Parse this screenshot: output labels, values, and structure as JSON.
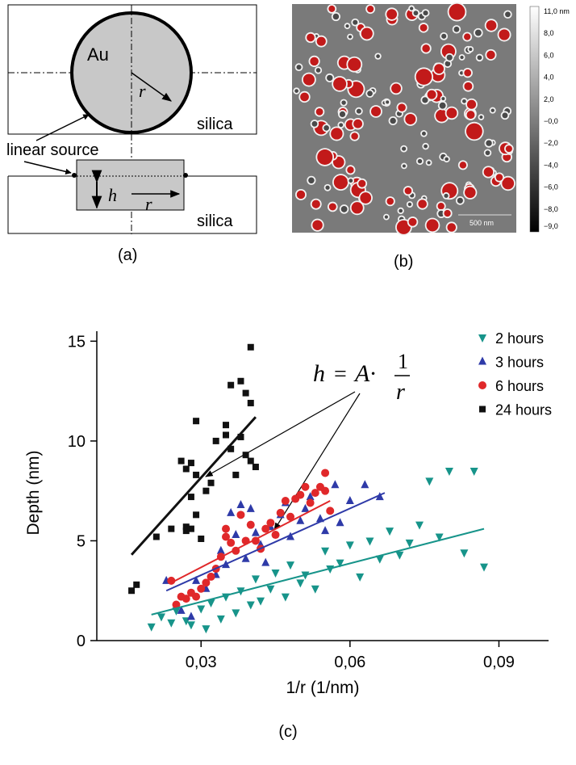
{
  "panel_a": {
    "circle_label": "Au",
    "radius_label_top": "r",
    "silica_top": "silica",
    "source_label": "linear source",
    "depth_label": "h",
    "radius_label_bottom": "r",
    "silica_bottom": "silica",
    "caption": "(a)"
  },
  "panel_b": {
    "colorbar_labels": [
      "11,0 nm",
      "8,0",
      "6,0",
      "4,0",
      "2,0",
      "−0,0",
      "−2,0",
      "−4,0",
      "−6,0",
      "−8,0",
      "−9,0"
    ],
    "scale_bar": "500 nm",
    "caption": "(b)"
  },
  "chart_data": {
    "type": "scatter",
    "caption": "(c)",
    "x_label": "1/r (1/nm)",
    "y_label": "Depth (nm)",
    "formula": {
      "lhs": "h",
      "eq": "=",
      "coef": "A·",
      "numerator": "1",
      "denominator": "r"
    },
    "xlim": [
      0.009,
      0.1
    ],
    "ylim": [
      0,
      15.5
    ],
    "xticks": [
      {
        "value": 0.03,
        "label": "0,03"
      },
      {
        "value": 0.06,
        "label": "0,06"
      },
      {
        "value": 0.09,
        "label": "0,09"
      }
    ],
    "yticks": [
      0,
      5,
      10,
      15
    ],
    "series": [
      {
        "name": "2 hours",
        "color": "#17948a",
        "marker": "triangle-down",
        "x": [
          0.02,
          0.022,
          0.024,
          0.025,
          0.027,
          0.028,
          0.03,
          0.031,
          0.032,
          0.034,
          0.035,
          0.037,
          0.038,
          0.04,
          0.041,
          0.042,
          0.044,
          0.045,
          0.047,
          0.048,
          0.05,
          0.051,
          0.053,
          0.055,
          0.056,
          0.058,
          0.06,
          0.062,
          0.064,
          0.066,
          0.068,
          0.07,
          0.072,
          0.074,
          0.076,
          0.078,
          0.08,
          0.083,
          0.085,
          0.087
        ],
        "values": [
          0.7,
          1.2,
          0.9,
          1.5,
          1.0,
          0.8,
          1.6,
          0.6,
          1.9,
          1.1,
          2.2,
          1.4,
          2.5,
          1.8,
          3.1,
          2.0,
          2.6,
          3.4,
          2.2,
          3.8,
          2.9,
          3.3,
          2.6,
          4.5,
          3.6,
          3.9,
          4.8,
          3.2,
          5.0,
          4.1,
          5.5,
          4.3,
          4.9,
          5.8,
          8.0,
          5.2,
          8.5,
          4.4,
          8.5,
          3.7
        ],
        "fit_x": [
          0.02,
          0.087
        ],
        "fit_y": [
          1.3,
          5.6
        ]
      },
      {
        "name": "3 hours",
        "color": "#2e3aa8",
        "marker": "triangle-up",
        "x": [
          0.023,
          0.026,
          0.028,
          0.029,
          0.031,
          0.033,
          0.034,
          0.035,
          0.036,
          0.037,
          0.038,
          0.039,
          0.04,
          0.041,
          0.042,
          0.043,
          0.044,
          0.046,
          0.047,
          0.048,
          0.05,
          0.051,
          0.052,
          0.054,
          0.055,
          0.057,
          0.058,
          0.06,
          0.063,
          0.066
        ],
        "values": [
          3.0,
          1.5,
          1.2,
          3.0,
          2.6,
          3.3,
          4.5,
          3.8,
          6.4,
          5.3,
          6.8,
          4.1,
          6.6,
          5.4,
          4.8,
          3.9,
          5.7,
          6.3,
          6.9,
          5.2,
          6.0,
          6.6,
          7.2,
          6.1,
          5.5,
          7.8,
          5.9,
          7.0,
          7.8,
          7.2
        ],
        "fit_x": [
          0.023,
          0.067
        ],
        "fit_y": [
          2.5,
          7.4
        ]
      },
      {
        "name": "6 hours",
        "color": "#e0282a",
        "marker": "circle",
        "x": [
          0.024,
          0.025,
          0.026,
          0.027,
          0.028,
          0.029,
          0.03,
          0.031,
          0.032,
          0.033,
          0.034,
          0.035,
          0.035,
          0.036,
          0.037,
          0.038,
          0.039,
          0.04,
          0.041,
          0.042,
          0.043,
          0.044,
          0.045,
          0.046,
          0.047,
          0.048,
          0.049,
          0.05,
          0.051,
          0.052,
          0.053,
          0.054,
          0.055,
          0.055,
          0.056
        ],
        "values": [
          3.0,
          1.8,
          2.2,
          2.1,
          2.4,
          2.2,
          2.6,
          2.9,
          3.2,
          3.6,
          4.2,
          5.2,
          5.6,
          4.9,
          4.5,
          6.3,
          5.0,
          5.8,
          5.0,
          4.6,
          5.6,
          5.9,
          5.3,
          6.4,
          7.0,
          6.2,
          7.1,
          7.3,
          7.7,
          6.9,
          7.4,
          7.7,
          8.4,
          7.5,
          6.5
        ],
        "fit_x": [
          0.024,
          0.056
        ],
        "fit_y": [
          2.9,
          7.0
        ]
      },
      {
        "name": "24 hours",
        "color": "#111111",
        "marker": "square",
        "x": [
          0.016,
          0.017,
          0.021,
          0.024,
          0.026,
          0.027,
          0.027,
          0.027,
          0.028,
          0.028,
          0.028,
          0.029,
          0.029,
          0.029,
          0.03,
          0.031,
          0.032,
          0.033,
          0.035,
          0.035,
          0.036,
          0.036,
          0.037,
          0.038,
          0.038,
          0.039,
          0.039,
          0.04,
          0.04,
          0.04,
          0.041
        ],
        "values": [
          2.5,
          2.8,
          5.2,
          5.6,
          9.0,
          8.6,
          5.5,
          5.7,
          5.6,
          7.2,
          8.9,
          11.0,
          8.3,
          6.3,
          5.1,
          7.5,
          7.9,
          10.0,
          10.3,
          10.8,
          12.8,
          9.6,
          8.3,
          13.0,
          10.2,
          9.3,
          12.4,
          14.7,
          11.9,
          9.0,
          8.7
        ],
        "fit_x": [
          0.016,
          0.041
        ],
        "fit_y": [
          4.3,
          11.2
        ]
      }
    ]
  }
}
